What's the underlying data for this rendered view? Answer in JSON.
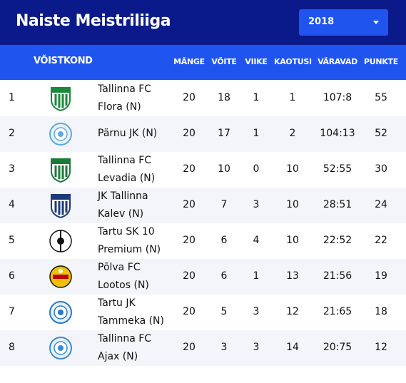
{
  "header": {
    "title": "Naiste Meistriliiga",
    "year_select": {
      "value": "2018"
    }
  },
  "columns": {
    "team": "VÕISTKOND",
    "played": "MÄNGE",
    "won": "VÕITE",
    "drawn": "VIIKE",
    "lost": "KAOTUSI",
    "goals": "VÄRAVAD",
    "points": "PUNKTE"
  },
  "rows": [
    {
      "rank": "1",
      "name_l1": "Tallinna FC",
      "name_l2": "Flora (N)",
      "played": "20",
      "won": "18",
      "drawn": "1",
      "lost": "1",
      "goals": "107:8",
      "points": "55",
      "logo": "flora-logo-icon",
      "color": "#1a8a3a"
    },
    {
      "rank": "2",
      "name_l1": "Pärnu JK (N)",
      "name_l2": "",
      "played": "20",
      "won": "17",
      "drawn": "1",
      "lost": "2",
      "goals": "104:13",
      "points": "52",
      "logo": "parnu-logo-icon",
      "color": "#5fa8e0"
    },
    {
      "rank": "3",
      "name_l1": "Tallinna FC",
      "name_l2": "Levadia (N)",
      "played": "20",
      "won": "10",
      "drawn": "0",
      "lost": "10",
      "goals": "52:55",
      "points": "30",
      "logo": "levadia-logo-icon",
      "color": "#1a7a3a"
    },
    {
      "rank": "4",
      "name_l1": "JK Tallinna",
      "name_l2": "Kalev (N)",
      "played": "20",
      "won": "7",
      "drawn": "3",
      "lost": "10",
      "goals": "28:51",
      "points": "24",
      "logo": "kalev-logo-icon",
      "color": "#1d3a7a"
    },
    {
      "rank": "5",
      "name_l1": "Tartu SK 10",
      "name_l2": "Premium (N)",
      "played": "20",
      "won": "6",
      "drawn": "4",
      "lost": "10",
      "goals": "22:52",
      "points": "22",
      "logo": "tartu-sk10-logo-icon",
      "color": "#111111"
    },
    {
      "rank": "6",
      "name_l1": "Põlva FC",
      "name_l2": "Lootos (N)",
      "played": "20",
      "won": "6",
      "drawn": "1",
      "lost": "13",
      "goals": "21:56",
      "points": "19",
      "logo": "lootos-logo-icon",
      "color": "#f2c200"
    },
    {
      "rank": "7",
      "name_l1": "Tartu JK",
      "name_l2": "Tammeka (N)",
      "played": "20",
      "won": "5",
      "drawn": "3",
      "lost": "12",
      "goals": "21:65",
      "points": "18",
      "logo": "tammeka-logo-icon",
      "color": "#2a78c8"
    },
    {
      "rank": "8",
      "name_l1": "Tallinna FC",
      "name_l2": "Ajax (N)",
      "played": "20",
      "won": "3",
      "drawn": "3",
      "lost": "14",
      "goals": "20:75",
      "points": "12",
      "logo": "ajax-logo-icon",
      "color": "#3d8ad6"
    }
  ]
}
